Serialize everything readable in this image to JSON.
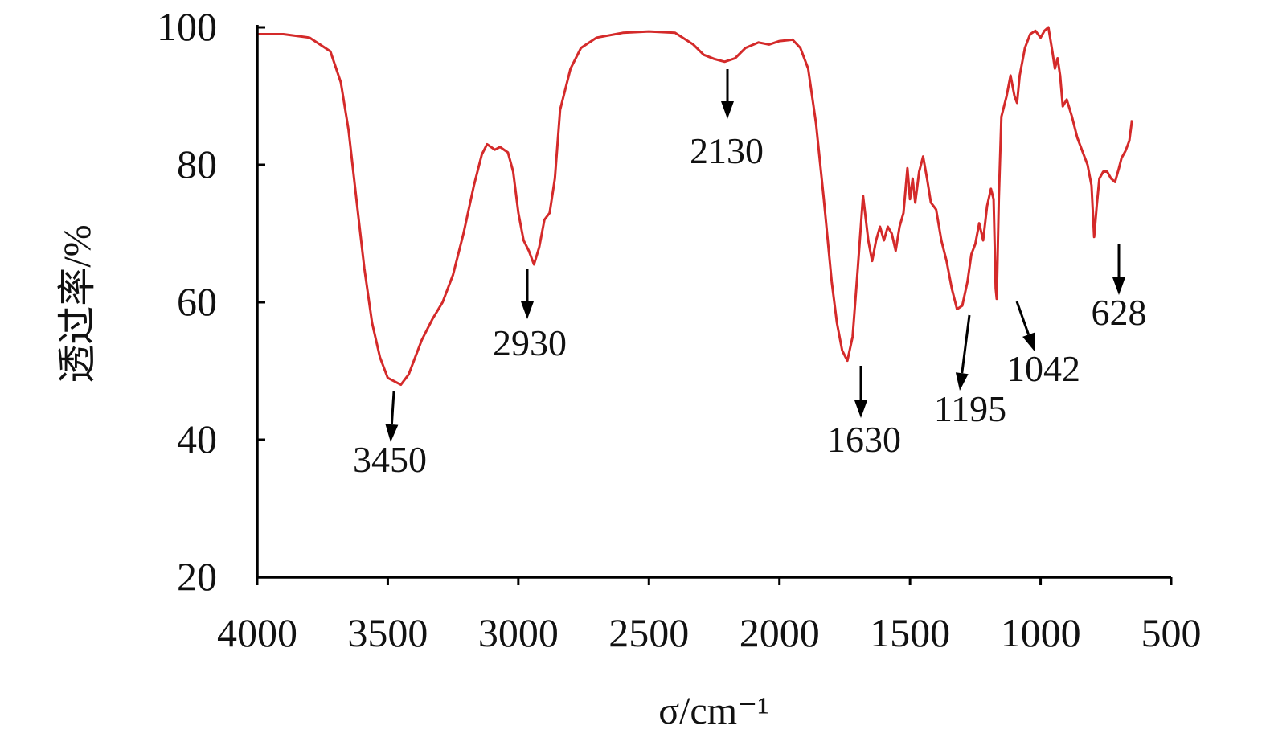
{
  "chart_data": {
    "type": "line",
    "title": "",
    "xlabel": "σ/cm⁻¹",
    "ylabel": "透过率/%",
    "xlim": [
      4000,
      500
    ],
    "ylim": [
      20,
      100
    ],
    "x_ticks": [
      4000,
      3500,
      3000,
      2500,
      2000,
      1500,
      1000,
      500
    ],
    "y_ticks": [
      20,
      40,
      60,
      80,
      100
    ],
    "grid": false,
    "legend": "none",
    "series": [
      {
        "color": "#d42a2a",
        "points": [
          [
            4000,
            99.0
          ],
          [
            3900,
            99.0
          ],
          [
            3800,
            98.5
          ],
          [
            3720,
            96.5
          ],
          [
            3680,
            92
          ],
          [
            3650,
            85
          ],
          [
            3620,
            75
          ],
          [
            3590,
            65
          ],
          [
            3560,
            57
          ],
          [
            3530,
            52
          ],
          [
            3500,
            49
          ],
          [
            3450,
            48
          ],
          [
            3420,
            49.5
          ],
          [
            3400,
            51.5
          ],
          [
            3370,
            54.5
          ],
          [
            3330,
            57.5
          ],
          [
            3290,
            60
          ],
          [
            3250,
            64
          ],
          [
            3210,
            70
          ],
          [
            3170,
            77
          ],
          [
            3140,
            81.5
          ],
          [
            3120,
            83.0
          ],
          [
            3090,
            82.2
          ],
          [
            3070,
            82.6
          ],
          [
            3040,
            81.8
          ],
          [
            3020,
            79
          ],
          [
            3000,
            73
          ],
          [
            2980,
            69
          ],
          [
            2960,
            67.5
          ],
          [
            2940,
            65.5
          ],
          [
            2920,
            68
          ],
          [
            2900,
            72
          ],
          [
            2880,
            73
          ],
          [
            2860,
            78
          ],
          [
            2840,
            88
          ],
          [
            2800,
            94
          ],
          [
            2760,
            97
          ],
          [
            2700,
            98.5
          ],
          [
            2600,
            99.2
          ],
          [
            2500,
            99.4
          ],
          [
            2400,
            99.2
          ],
          [
            2330,
            97.5
          ],
          [
            2290,
            96.0
          ],
          [
            2250,
            95.4
          ],
          [
            2210,
            95.0
          ],
          [
            2170,
            95.5
          ],
          [
            2130,
            97.0
          ],
          [
            2080,
            97.8
          ],
          [
            2040,
            97.5
          ],
          [
            2000,
            98.0
          ],
          [
            1950,
            98.2
          ],
          [
            1920,
            97.0
          ],
          [
            1890,
            94
          ],
          [
            1860,
            86
          ],
          [
            1830,
            75
          ],
          [
            1800,
            63
          ],
          [
            1780,
            57
          ],
          [
            1760,
            53
          ],
          [
            1740,
            51.5
          ],
          [
            1720,
            55
          ],
          [
            1700,
            65
          ],
          [
            1680,
            75.5
          ],
          [
            1660,
            69
          ],
          [
            1645,
            66
          ],
          [
            1630,
            69
          ],
          [
            1615,
            71
          ],
          [
            1600,
            69
          ],
          [
            1585,
            71
          ],
          [
            1570,
            70
          ],
          [
            1555,
            67.5
          ],
          [
            1540,
            71
          ],
          [
            1525,
            73
          ],
          [
            1510,
            79.5
          ],
          [
            1500,
            75
          ],
          [
            1490,
            78
          ],
          [
            1480,
            74.5
          ],
          [
            1465,
            79
          ],
          [
            1450,
            81.2
          ],
          [
            1435,
            78
          ],
          [
            1420,
            74.5
          ],
          [
            1400,
            73.5
          ],
          [
            1380,
            69
          ],
          [
            1360,
            66
          ],
          [
            1340,
            62
          ],
          [
            1320,
            59.0
          ],
          [
            1300,
            59.5
          ],
          [
            1280,
            63
          ],
          [
            1265,
            67
          ],
          [
            1250,
            68.5
          ],
          [
            1235,
            71.5
          ],
          [
            1220,
            69
          ],
          [
            1205,
            74
          ],
          [
            1190,
            76.5
          ],
          [
            1180,
            75
          ],
          [
            1172,
            62
          ],
          [
            1168,
            60.5
          ],
          [
            1160,
            75
          ],
          [
            1150,
            87
          ],
          [
            1130,
            90
          ],
          [
            1115,
            93
          ],
          [
            1100,
            90
          ],
          [
            1090,
            89
          ],
          [
            1080,
            93
          ],
          [
            1060,
            97
          ],
          [
            1040,
            99
          ],
          [
            1020,
            99.5
          ],
          [
            1000,
            98.5
          ],
          [
            985,
            99.5
          ],
          [
            970,
            100
          ],
          [
            955,
            96.5
          ],
          [
            945,
            94
          ],
          [
            935,
            95.5
          ],
          [
            925,
            93
          ],
          [
            915,
            88.5
          ],
          [
            900,
            89.5
          ],
          [
            880,
            87
          ],
          [
            860,
            84
          ],
          [
            840,
            82
          ],
          [
            820,
            80
          ],
          [
            805,
            77
          ],
          [
            795,
            69.5
          ],
          [
            785,
            74
          ],
          [
            775,
            78
          ],
          [
            760,
            79
          ],
          [
            745,
            79
          ],
          [
            730,
            78
          ],
          [
            715,
            77.5
          ],
          [
            700,
            79.5
          ],
          [
            690,
            81
          ],
          [
            675,
            82
          ],
          [
            660,
            83.5
          ],
          [
            650,
            86.5
          ]
        ]
      }
    ],
    "annotations": [
      {
        "text": "3450",
        "x": 3450,
        "y": 48
      },
      {
        "text": "2930",
        "x": 2930,
        "y": 65.5
      },
      {
        "text": "2130",
        "x": 2130,
        "y": 95
      },
      {
        "text": "1630",
        "x": 1630,
        "y": 51.5
      },
      {
        "text": "1195",
        "x": 1195,
        "y": 59
      },
      {
        "text": "1042",
        "x": 1042,
        "y": 60.5
      },
      {
        "text": "628",
        "x": 628,
        "y": 69.5
      }
    ]
  }
}
